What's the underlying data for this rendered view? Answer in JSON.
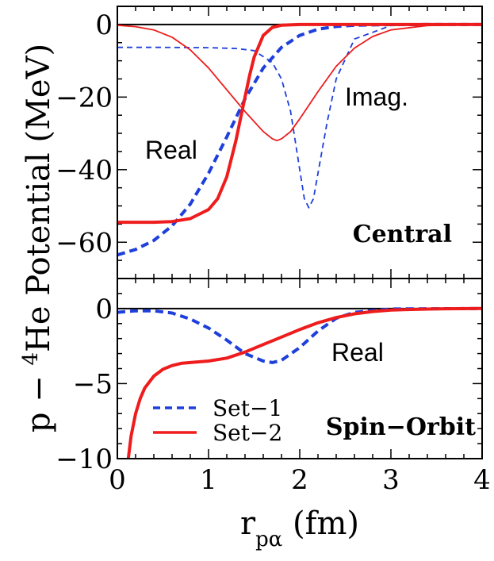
{
  "chart_data": [
    {
      "type": "line",
      "panel": "top",
      "annotation": "Central",
      "ylabel": "p − 4He Potential  (MeV)",
      "ylabel_parts": {
        "p": "p − ",
        "sup": "4",
        "rest": "He Potential  (MeV)"
      },
      "xlim": [
        0,
        4
      ],
      "ylim": [
        -70,
        5
      ],
      "yticks": [
        0,
        -20,
        -40,
        -60
      ],
      "ytick_labels": [
        "0",
        "−20",
        "−40",
        "−60"
      ],
      "zero_line": true,
      "curve_labels": [
        {
          "text": "Real",
          "x": 0.75,
          "y": -34
        },
        {
          "text": "Imag.",
          "x": 3.1,
          "y": -20
        }
      ],
      "series": [
        {
          "name": "Set−1",
          "part": "Real",
          "color": "#1f3fdb",
          "style": "dashed",
          "width": "thick",
          "x": [
            0,
            0.2,
            0.4,
            0.6,
            0.8,
            1.0,
            1.2,
            1.4,
            1.6,
            1.8,
            2.0,
            2.2,
            2.4,
            2.6,
            3.0,
            3.5,
            4.0
          ],
          "y": [
            -63.5,
            -62.0,
            -59.5,
            -55.5,
            -49.5,
            -41.0,
            -31.0,
            -20.5,
            -12.0,
            -6.3,
            -3.0,
            -1.3,
            -0.55,
            -0.2,
            -0.03,
            0,
            0
          ]
        },
        {
          "name": "Set−1",
          "part": "Imag.",
          "color": "#1f3fdb",
          "style": "dashed",
          "width": "thin",
          "x": [
            0,
            0.5,
            1.0,
            1.3,
            1.5,
            1.7,
            1.8,
            1.9,
            2.0,
            2.05,
            2.1,
            2.15,
            2.2,
            2.3,
            2.4,
            2.6,
            3.0,
            4.0
          ],
          "y": [
            -6.3,
            -6.3,
            -6.4,
            -6.6,
            -7.2,
            -10.5,
            -15,
            -24,
            -40,
            -48,
            -50.5,
            -48,
            -41,
            -27,
            -15,
            -4,
            -0.3,
            0
          ]
        },
        {
          "name": "Set−2",
          "part": "Real",
          "color": "#ee1c1c",
          "style": "solid",
          "width": "thick",
          "x": [
            0,
            0.4,
            0.6,
            0.8,
            1.0,
            1.1,
            1.2,
            1.3,
            1.4,
            1.45,
            1.5,
            1.6,
            1.7,
            1.8,
            2.0,
            2.5,
            4.0
          ],
          "y": [
            -54.5,
            -54.5,
            -54.3,
            -53.5,
            -51,
            -48,
            -42,
            -32,
            -20,
            -14,
            -9,
            -3,
            -0.8,
            -0.2,
            0,
            0,
            0
          ]
        },
        {
          "name": "Set−2",
          "part": "Imag.",
          "color": "#ee1c1c",
          "style": "solid",
          "width": "thin",
          "x": [
            0,
            0.2,
            0.4,
            0.6,
            0.8,
            1.0,
            1.2,
            1.4,
            1.6,
            1.7,
            1.75,
            1.8,
            1.9,
            2.0,
            2.2,
            2.4,
            2.6,
            2.8,
            3.0,
            3.4,
            4.0
          ],
          "y": [
            -0.2,
            -0.6,
            -1.5,
            -3.5,
            -7,
            -12,
            -18,
            -24,
            -29.5,
            -31.5,
            -32,
            -31.5,
            -29.5,
            -26,
            -18.5,
            -11.5,
            -6.5,
            -3.3,
            -1.5,
            -0.3,
            0
          ]
        }
      ]
    },
    {
      "type": "line",
      "panel": "bottom",
      "annotation": "Spin−Orbit",
      "xlabel": "r",
      "xlabel_sub": "pα",
      "xlabel_unit": " (fm)",
      "xlim": [
        0,
        4
      ],
      "ylim": [
        -10,
        2
      ],
      "xticks": [
        0,
        1,
        2,
        3,
        4
      ],
      "xtick_labels": [
        "0",
        "1",
        "2",
        "3",
        "4"
      ],
      "yticks": [
        0,
        -5,
        -10
      ],
      "ytick_labels": [
        "0",
        "−5",
        "−10"
      ],
      "zero_line": true,
      "curve_labels": [
        {
          "text": "Real",
          "x": 2.75,
          "y": -2.1
        }
      ],
      "legend": [
        {
          "label": "Set−1",
          "color": "#1f3fdb",
          "style": "dashed"
        },
        {
          "label": "Set−2",
          "color": "#ee1c1c",
          "style": "solid"
        }
      ],
      "series": [
        {
          "name": "Set−1",
          "part": "Real",
          "color": "#1f3fdb",
          "style": "dashed",
          "width": "thick",
          "x": [
            0,
            0.2,
            0.4,
            0.6,
            0.8,
            1.0,
            1.2,
            1.4,
            1.6,
            1.7,
            1.8,
            2.0,
            2.2,
            2.4,
            2.6,
            3.0,
            4.0
          ],
          "y": [
            -0.25,
            -0.15,
            -0.15,
            -0.3,
            -0.7,
            -1.3,
            -2.1,
            -3.0,
            -3.5,
            -3.6,
            -3.45,
            -2.6,
            -1.5,
            -0.65,
            -0.25,
            -0.03,
            0
          ]
        },
        {
          "name": "Set−2",
          "part": "Real",
          "color": "#ee1c1c",
          "style": "solid",
          "width": "thick",
          "x": [
            0.12,
            0.15,
            0.2,
            0.25,
            0.3,
            0.4,
            0.5,
            0.6,
            0.7,
            0.8,
            1.0,
            1.2,
            1.4,
            1.6,
            1.8,
            2.0,
            2.2,
            2.4,
            2.6,
            2.8,
            3.0,
            3.5,
            4.0
          ],
          "y": [
            -10,
            -8.5,
            -7.0,
            -6.0,
            -5.3,
            -4.5,
            -4.05,
            -3.8,
            -3.65,
            -3.6,
            -3.5,
            -3.3,
            -2.9,
            -2.4,
            -1.9,
            -1.4,
            -0.95,
            -0.6,
            -0.35,
            -0.2,
            -0.1,
            -0.02,
            0
          ]
        }
      ]
    }
  ]
}
